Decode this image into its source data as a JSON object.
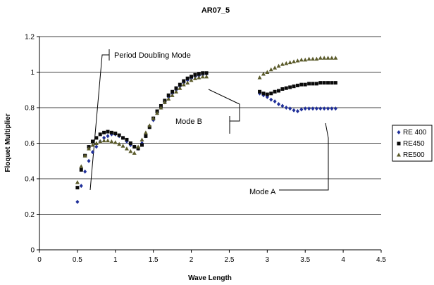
{
  "chart_data": {
    "type": "scatter",
    "title": "AR07_5",
    "xlabel": "Wave Length",
    "ylabel": "Floquet Multiplier",
    "xlim": [
      0,
      4.5
    ],
    "ylim": [
      0,
      1.2
    ],
    "x_ticks": [
      "0",
      "0.5",
      "1",
      "1.5",
      "2",
      "2.5",
      "3",
      "3.5",
      "4",
      "4.5"
    ],
    "y_ticks": [
      "0",
      "0.2",
      "0.4",
      "0.6",
      "0.8",
      "1",
      "1.2"
    ],
    "grid": "horizontal",
    "legend_position": "right",
    "annotations": [
      "Period Doubling Mode",
      "Mode B",
      "Mode A"
    ],
    "series": [
      {
        "name": "RE 400",
        "color": "#1f2f99",
        "marker": "diamond",
        "x": [
          0.5,
          0.55,
          0.6,
          0.65,
          0.7,
          0.75,
          0.8,
          0.85,
          0.9,
          0.95,
          1.0,
          1.05,
          1.1,
          1.15,
          1.2,
          1.25,
          1.3,
          1.35,
          1.4,
          1.45,
          1.5,
          1.55,
          1.6,
          1.65,
          1.7,
          1.75,
          1.8,
          1.85,
          1.9,
          1.95,
          2.0,
          2.05,
          2.1,
          2.15,
          2.2,
          2.9,
          2.95,
          3.0,
          3.05,
          3.1,
          3.15,
          3.2,
          3.25,
          3.3,
          3.35,
          3.4,
          3.45,
          3.5,
          3.55,
          3.6,
          3.65,
          3.7,
          3.75,
          3.8,
          3.85,
          3.9
        ],
        "y": [
          0.27,
          0.36,
          0.44,
          0.5,
          0.55,
          0.58,
          0.61,
          0.63,
          0.64,
          0.65,
          0.65,
          0.64,
          0.63,
          0.61,
          0.59,
          0.58,
          0.57,
          0.6,
          0.64,
          0.69,
          0.73,
          0.77,
          0.8,
          0.83,
          0.86,
          0.88,
          0.9,
          0.92,
          0.94,
          0.955,
          0.965,
          0.975,
          0.98,
          0.985,
          0.99,
          0.88,
          0.87,
          0.86,
          0.845,
          0.835,
          0.82,
          0.81,
          0.8,
          0.795,
          0.785,
          0.78,
          0.79,
          0.795,
          0.795,
          0.795,
          0.795,
          0.795,
          0.795,
          0.795,
          0.795,
          0.795
        ]
      },
      {
        "name": "RE450",
        "color": "#0a0a0a",
        "marker": "square",
        "x": [
          0.5,
          0.55,
          0.6,
          0.65,
          0.7,
          0.75,
          0.8,
          0.85,
          0.9,
          0.95,
          1.0,
          1.05,
          1.1,
          1.15,
          1.2,
          1.25,
          1.3,
          1.35,
          1.4,
          1.45,
          1.5,
          1.55,
          1.6,
          1.65,
          1.7,
          1.75,
          1.8,
          1.85,
          1.9,
          1.95,
          2.0,
          2.05,
          2.1,
          2.15,
          2.2,
          2.9,
          2.95,
          3.0,
          3.05,
          3.1,
          3.15,
          3.2,
          3.25,
          3.3,
          3.35,
          3.4,
          3.45,
          3.5,
          3.55,
          3.6,
          3.65,
          3.7,
          3.75,
          3.8,
          3.85,
          3.9
        ],
        "y": [
          0.35,
          0.45,
          0.53,
          0.58,
          0.61,
          0.63,
          0.65,
          0.66,
          0.665,
          0.66,
          0.655,
          0.645,
          0.63,
          0.62,
          0.6,
          0.58,
          0.57,
          0.59,
          0.64,
          0.69,
          0.74,
          0.78,
          0.81,
          0.84,
          0.87,
          0.89,
          0.91,
          0.93,
          0.95,
          0.965,
          0.975,
          0.985,
          0.99,
          0.995,
          0.995,
          0.89,
          0.88,
          0.875,
          0.88,
          0.89,
          0.895,
          0.905,
          0.91,
          0.915,
          0.92,
          0.925,
          0.93,
          0.93,
          0.935,
          0.935,
          0.935,
          0.94,
          0.94,
          0.94,
          0.94,
          0.94
        ]
      },
      {
        "name": "RE500",
        "color": "#5a5a2a",
        "marker": "triangle",
        "x": [
          0.5,
          0.55,
          0.6,
          0.65,
          0.7,
          0.75,
          0.8,
          0.85,
          0.9,
          0.95,
          1.0,
          1.05,
          1.1,
          1.15,
          1.2,
          1.25,
          1.3,
          1.35,
          1.4,
          1.45,
          1.5,
          1.55,
          1.6,
          1.65,
          1.7,
          1.75,
          1.8,
          1.85,
          1.9,
          1.95,
          2.0,
          2.05,
          2.1,
          2.15,
          2.2,
          2.9,
          2.95,
          3.0,
          3.05,
          3.1,
          3.15,
          3.2,
          3.25,
          3.3,
          3.35,
          3.4,
          3.45,
          3.5,
          3.55,
          3.6,
          3.65,
          3.7,
          3.75,
          3.8,
          3.85,
          3.9
        ],
        "y": [
          0.38,
          0.47,
          0.53,
          0.57,
          0.59,
          0.6,
          0.61,
          0.615,
          0.615,
          0.61,
          0.605,
          0.595,
          0.585,
          0.57,
          0.555,
          0.545,
          0.58,
          0.62,
          0.66,
          0.7,
          0.74,
          0.77,
          0.8,
          0.83,
          0.85,
          0.87,
          0.89,
          0.91,
          0.93,
          0.94,
          0.955,
          0.965,
          0.97,
          0.975,
          0.975,
          0.97,
          0.99,
          1.0,
          1.015,
          1.025,
          1.035,
          1.045,
          1.05,
          1.055,
          1.06,
          1.065,
          1.07,
          1.07,
          1.075,
          1.075,
          1.075,
          1.08,
          1.08,
          1.08,
          1.08,
          1.08
        ]
      }
    ]
  }
}
